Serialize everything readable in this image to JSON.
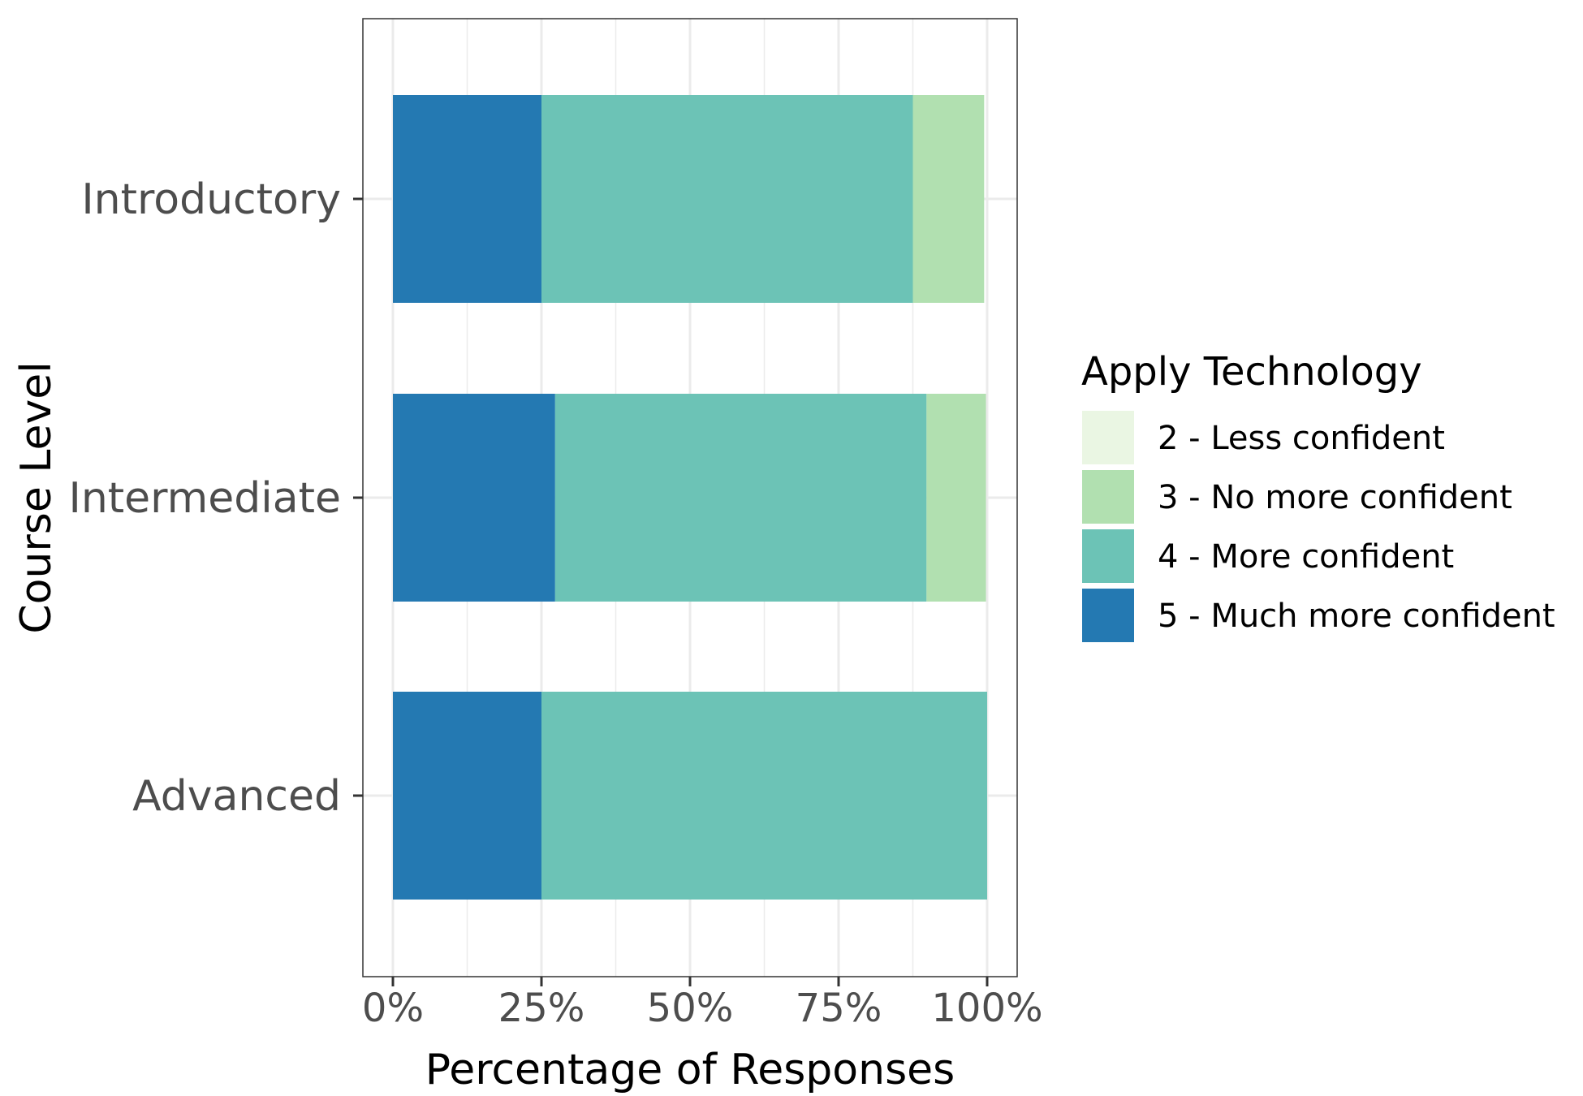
{
  "chart_data": {
    "type": "bar",
    "orientation": "horizontal",
    "stacked": true,
    "categories": [
      "Introductory",
      "Intermediate",
      "Advanced"
    ],
    "series": [
      {
        "name": "5 - Much more confident",
        "color": "#2479b2",
        "values": [
          25,
          27.3,
          25
        ]
      },
      {
        "name": "4 - More confident",
        "color": "#6cc3b6",
        "values": [
          62.5,
          62.5,
          75
        ]
      },
      {
        "name": "3 - No more confident",
        "color": "#b1e0b0",
        "values": [
          12,
          10,
          0
        ]
      },
      {
        "name": "2 - Less confident",
        "color": "#eaf6e3",
        "values": [
          0,
          0,
          0
        ]
      }
    ],
    "legend_order": [
      "2 - Less confident",
      "3 - No more confident",
      "4 - More confident",
      "5 - Much more confident"
    ],
    "xticks": [
      0,
      25,
      50,
      75,
      100
    ],
    "xtick_labels": [
      "0%",
      "25%",
      "50%",
      "75%",
      "100%"
    ],
    "xlim": [
      0,
      100
    ],
    "xlabel": "Percentage of Responses",
    "ylabel": "Course Level",
    "legend_title": "Apply Technology",
    "legend_position": "right",
    "grid": true
  }
}
